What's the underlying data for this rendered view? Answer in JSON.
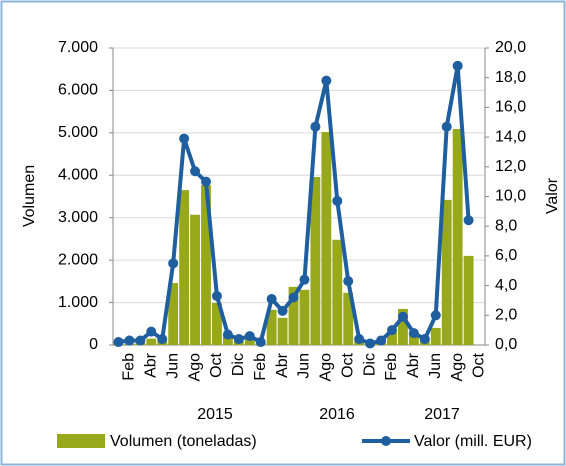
{
  "chart_data": {
    "type": "bar-line",
    "categories": [
      null,
      "Feb",
      null,
      "Abr",
      null,
      "Jun",
      null,
      "Ago",
      null,
      "Oct",
      null,
      "Dic",
      null,
      "Feb",
      null,
      "Abr",
      null,
      "Jun",
      null,
      "Ago",
      null,
      "Oct",
      null,
      "Dic",
      null,
      "Feb",
      null,
      "Abr",
      null,
      "Jun",
      null,
      "Ago",
      null,
      "Oct"
    ],
    "year_labels": [
      "2015",
      "2016",
      "2017"
    ],
    "series": [
      {
        "name": "Volumen (toneladas)",
        "type": "bar",
        "color": "#97a81a",
        "axis": "y",
        "values": [
          20,
          30,
          50,
          150,
          100,
          1460,
          3650,
          3070,
          3770,
          990,
          200,
          100,
          200,
          80,
          830,
          640,
          1370,
          1300,
          3960,
          5020,
          2480,
          1230,
          100,
          30,
          60,
          300,
          850,
          300,
          150,
          400,
          3420,
          5090,
          2100,
          null
        ]
      },
      {
        "name": "Valor (mill. EUR)",
        "type": "line",
        "color": "#1f5fa0",
        "axis": "y2",
        "values": [
          0.2,
          0.3,
          0.3,
          0.9,
          0.4,
          5.5,
          13.9,
          11.7,
          11.0,
          3.3,
          0.7,
          0.4,
          0.6,
          0.2,
          3.1,
          2.3,
          3.2,
          4.4,
          14.7,
          17.8,
          9.7,
          4.3,
          0.4,
          0.1,
          0.3,
          1.0,
          1.9,
          0.8,
          0.4,
          2.0,
          14.7,
          18.8,
          8.4,
          null
        ]
      }
    ],
    "ylabel": "Volumen",
    "y2label": "Valor",
    "ylim": [
      0,
      7000
    ],
    "yticks": [
      0,
      {
        "value": 1000,
        "label": "1.000"
      },
      {
        "value": 2000,
        "label": "2.000"
      },
      {
        "value": 3000,
        "label": "3.000"
      },
      {
        "value": 4000,
        "label": "4.000"
      },
      {
        "value": 5000,
        "label": "5.000"
      },
      {
        "value": 6000,
        "label": "6.000"
      },
      {
        "value": 7000,
        "label": "7.000"
      }
    ],
    "y2lim": [
      0,
      20
    ],
    "y2ticks": [
      {
        "value": 0,
        "label": "0,0"
      },
      {
        "value": 2,
        "label": "2,0"
      },
      {
        "value": 4,
        "label": "4,0"
      },
      {
        "value": 6,
        "label": "6,0"
      },
      {
        "value": 8,
        "label": "8,0"
      },
      {
        "value": 10,
        "label": "10,0"
      },
      {
        "value": 12,
        "label": "12,0"
      },
      {
        "value": 14,
        "label": "14,0"
      },
      {
        "value": 16,
        "label": "16,0"
      },
      {
        "value": 18,
        "label": "18,0"
      },
      {
        "value": 20,
        "label": "20,0"
      }
    ],
    "grid": true,
    "legend": "bottom"
  }
}
